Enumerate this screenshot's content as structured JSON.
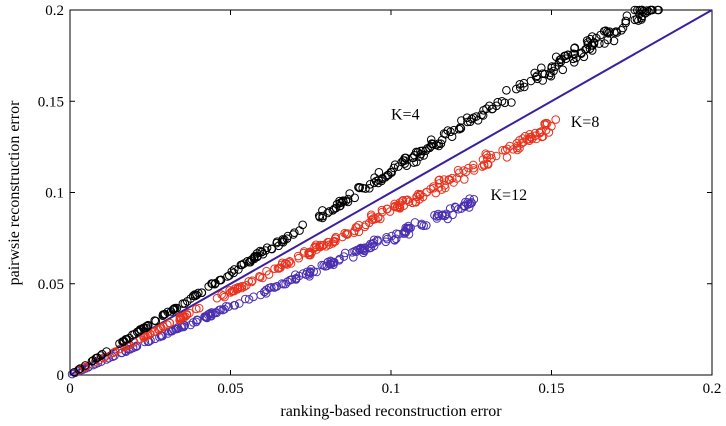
{
  "chart_data": {
    "type": "scatter",
    "title": "",
    "xlabel": "ranking-based reconstruction error",
    "ylabel": "pairwsie reconstruction error",
    "xlim": [
      0,
      0.2
    ],
    "ylim": [
      0,
      0.2
    ],
    "grid": false,
    "x_ticks": [
      "0",
      "0.05",
      "0.1",
      "0.15",
      "0.2"
    ],
    "y_ticks": [
      "0",
      "0.05",
      "0.1",
      "0.15",
      "0.2"
    ],
    "reference_line": {
      "from": [
        0,
        0
      ],
      "to": [
        0.2,
        0.2
      ],
      "color": "#3a1fa0"
    },
    "series": [
      {
        "label": "K=4",
        "color": "#000000",
        "slope": 1.115,
        "x_max": 0.185,
        "spread": 0.35,
        "label_at": [
          0.1,
          0.14
        ]
      },
      {
        "label": "K=8",
        "color": "#e8321e",
        "slope": 0.905,
        "x_max": 0.152,
        "spread": 0.3,
        "label_at": [
          0.156,
          0.136
        ]
      },
      {
        "label": "K=12",
        "color": "#4b2fb0",
        "slope": 0.755,
        "x_max": 0.127,
        "spread": 0.28,
        "label_at": [
          0.131,
          0.096
        ]
      }
    ]
  }
}
